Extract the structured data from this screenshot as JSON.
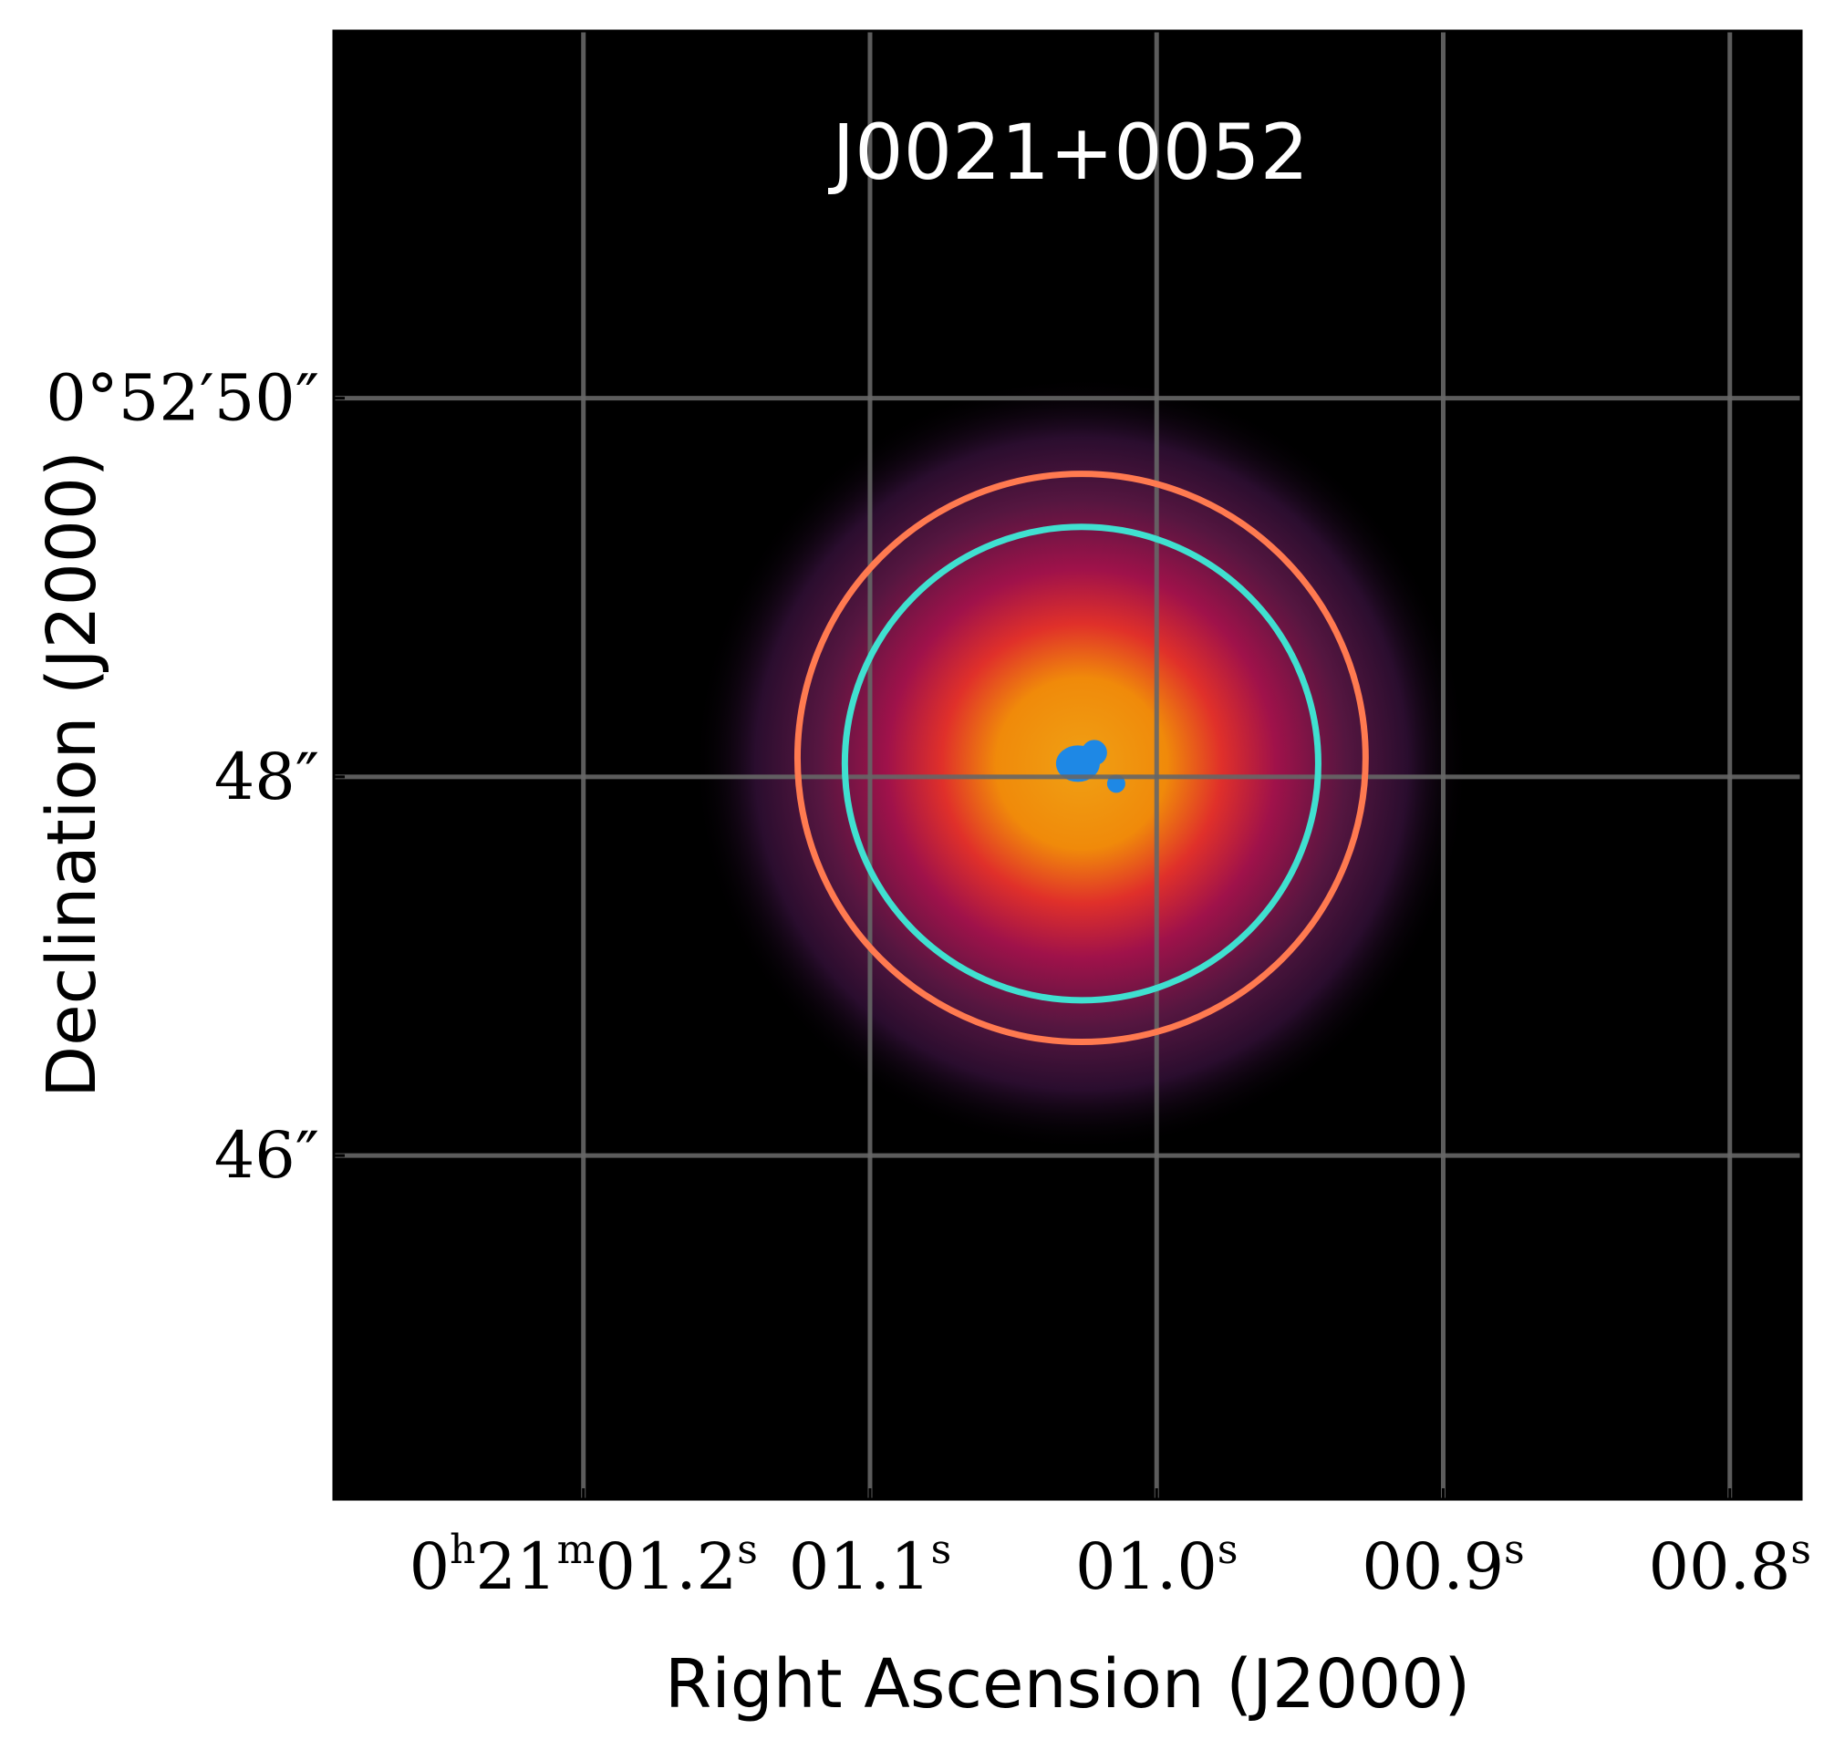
{
  "chart_data": {
    "type": "heatmap",
    "title": "J0021+0052",
    "xlabel": "Right Ascension (J2000)",
    "ylabel": "Declination (J2000)",
    "colors": {
      "background": "#000000",
      "grid": "#666666",
      "outer_circle": "#ff7a50",
      "inner_circle": "#40e0d0",
      "core": "#1e88e5",
      "map_colormap": [
        "#000000",
        "#2a0d2e",
        "#a0124a",
        "#e0302a",
        "#f08a0a",
        "#f0a014"
      ]
    },
    "grid": true,
    "x_axis": {
      "unit": "s",
      "range": [
        1.2871,
        0.7751
      ],
      "ticks": [
        {
          "value": 1.2,
          "label_parts": [
            "0",
            "h",
            "21",
            "m",
            "01.2",
            "s"
          ]
        },
        {
          "value": 1.1,
          "label_parts": [
            "01.1",
            "s"
          ]
        },
        {
          "value": 1.0,
          "label_parts": [
            "01.0",
            "s"
          ]
        },
        {
          "value": 0.9,
          "label_parts": [
            "00.9",
            "s"
          ]
        },
        {
          "value": 0.8,
          "label_parts": [
            "00.8",
            "s"
          ]
        }
      ]
    },
    "y_axis": {
      "unit": "arcsec",
      "range": [
        44.185,
        51.939
      ],
      "ticks": [
        {
          "value": 50,
          "label": "0°52′50″"
        },
        {
          "value": 48,
          "label": "48″"
        },
        {
          "value": 46,
          "label": "46″"
        }
      ]
    },
    "source": {
      "ra": 1.0262,
      "dec": 48.07
    },
    "apertures": [
      {
        "name": "outer",
        "ra": 1.0262,
        "dec": 48.1,
        "radius_arcsec": 1.5
      },
      {
        "name": "inner",
        "ra": 1.0262,
        "dec": 48.07,
        "radius_arcsec": 1.25
      }
    ]
  }
}
